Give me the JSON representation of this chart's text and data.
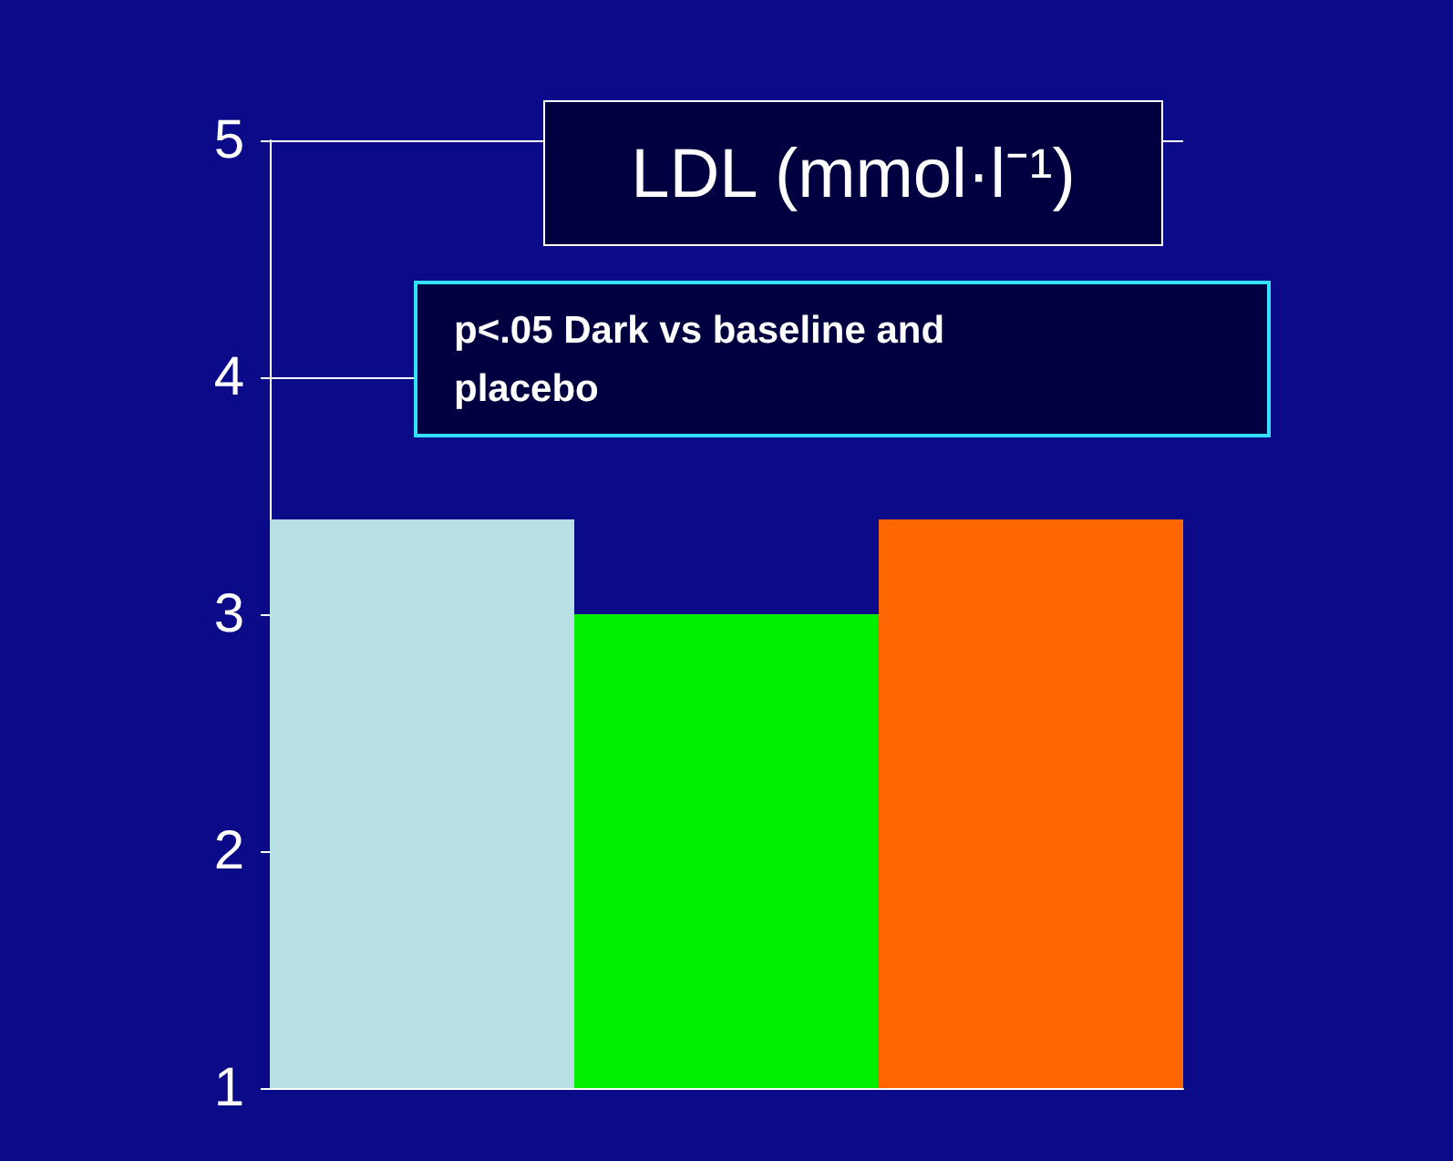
{
  "chart_data": {
    "type": "bar",
    "title": "LDL (mmol·l⁻¹)",
    "categories": [
      null,
      null,
      null
    ],
    "values": [
      3.4,
      3.0,
      3.4
    ],
    "colors": [
      "#b8e0e4",
      "#00ee00",
      "#ff6600"
    ],
    "ylim": [
      1,
      5
    ],
    "yticks": [
      1,
      2,
      3,
      4,
      5
    ],
    "grid": "y",
    "annotations": [
      "p<.05 Dark vs baseline and placebo"
    ]
  }
}
